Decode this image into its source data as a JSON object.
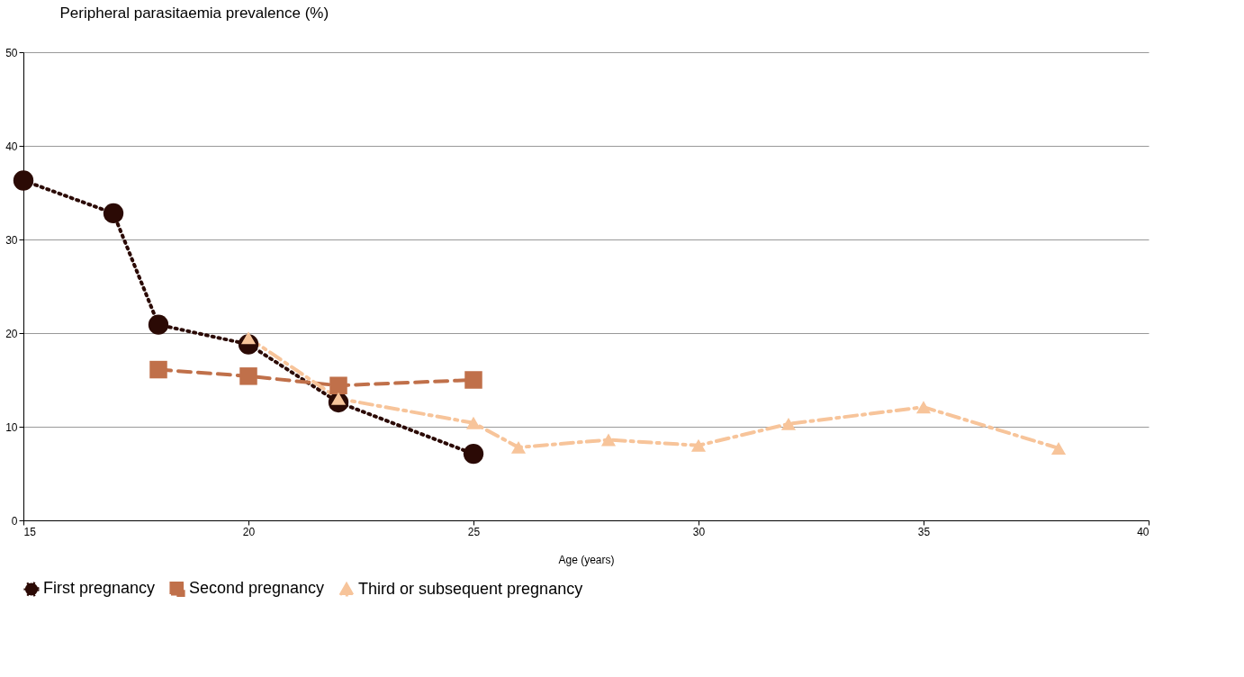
{
  "chart_data": {
    "type": "line",
    "ylabel": "Peripheral parasitaemia prevalence (%)",
    "xlabel": "Age (years)",
    "xlim": [
      15,
      40
    ],
    "xticks": [
      15,
      20,
      25,
      30,
      35,
      40
    ],
    "ylim": [
      0,
      50
    ],
    "yticks": [
      0,
      10,
      20,
      30,
      40,
      50
    ],
    "grid": "y",
    "legend": "bottom",
    "series": [
      {
        "name": "First pregnancy",
        "color": "#2b0a05",
        "marker": "circle",
        "line_style": "dotted",
        "x": [
          15,
          17,
          18,
          20,
          22,
          25
        ],
        "values": [
          36.3,
          32.8,
          20.9,
          18.8,
          12.6,
          7.1
        ]
      },
      {
        "name": "Second pregnancy",
        "color": "#c0704a",
        "marker": "square",
        "line_style": "dashed",
        "x": [
          18,
          20,
          22,
          25
        ],
        "values": [
          16.1,
          15.4,
          14.4,
          15.0
        ]
      },
      {
        "name": "Third or subsequent pregnancy",
        "color": "#f7c49a",
        "marker": "triangle",
        "line_style": "dashdot",
        "x": [
          20,
          22,
          25,
          26,
          28,
          30,
          32,
          35,
          38
        ],
        "values": [
          19.5,
          13.0,
          10.4,
          7.8,
          8.6,
          8.0,
          10.3,
          12.1,
          7.7
        ]
      }
    ]
  }
}
